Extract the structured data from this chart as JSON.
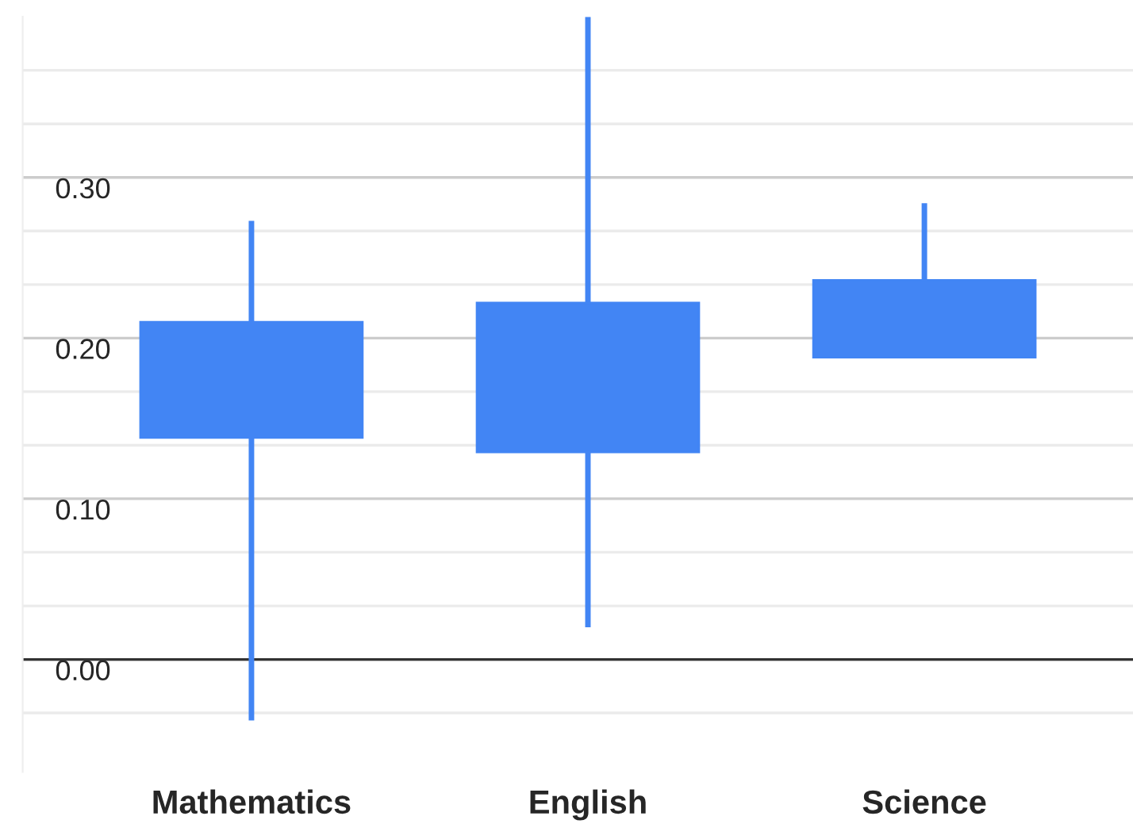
{
  "chart_data": {
    "type": "candlestick",
    "categories": [
      "Mathematics",
      "English",
      "Science"
    ],
    "ohlc": [
      [
        0.138,
        0.273,
        -0.038,
        0.21
      ],
      [
        0.129,
        0.4,
        0.02,
        0.222
      ],
      [
        0.188,
        0.284,
        0.188,
        0.236
      ]
    ],
    "color": "#4285f4",
    "ylim": [
      -0.07,
      0.4
    ],
    "yticks": [
      {
        "value": 0,
        "label": "0.00"
      },
      {
        "value": 0.1,
        "label": "0.10"
      },
      {
        "value": 0.2,
        "label": "0.20"
      },
      {
        "value": 0.3,
        "label": "0.30"
      },
      {
        "value": -0.0333,
        "label": null
      },
      {
        "value": 0.0333,
        "label": null
      },
      {
        "value": 0.0667,
        "label": null
      },
      {
        "value": 0.1333,
        "label": null
      },
      {
        "value": 0.1667,
        "label": null
      },
      {
        "value": 0.2333,
        "label": null
      },
      {
        "value": 0.2667,
        "label": null
      },
      {
        "value": 0.3333,
        "label": null
      },
      {
        "value": 0.3667,
        "label": null
      }
    ],
    "grid": true,
    "ref_lines": [
      {
        "axis": "y",
        "value": 0,
        "label": null,
        "color": "#333333"
      }
    ]
  }
}
